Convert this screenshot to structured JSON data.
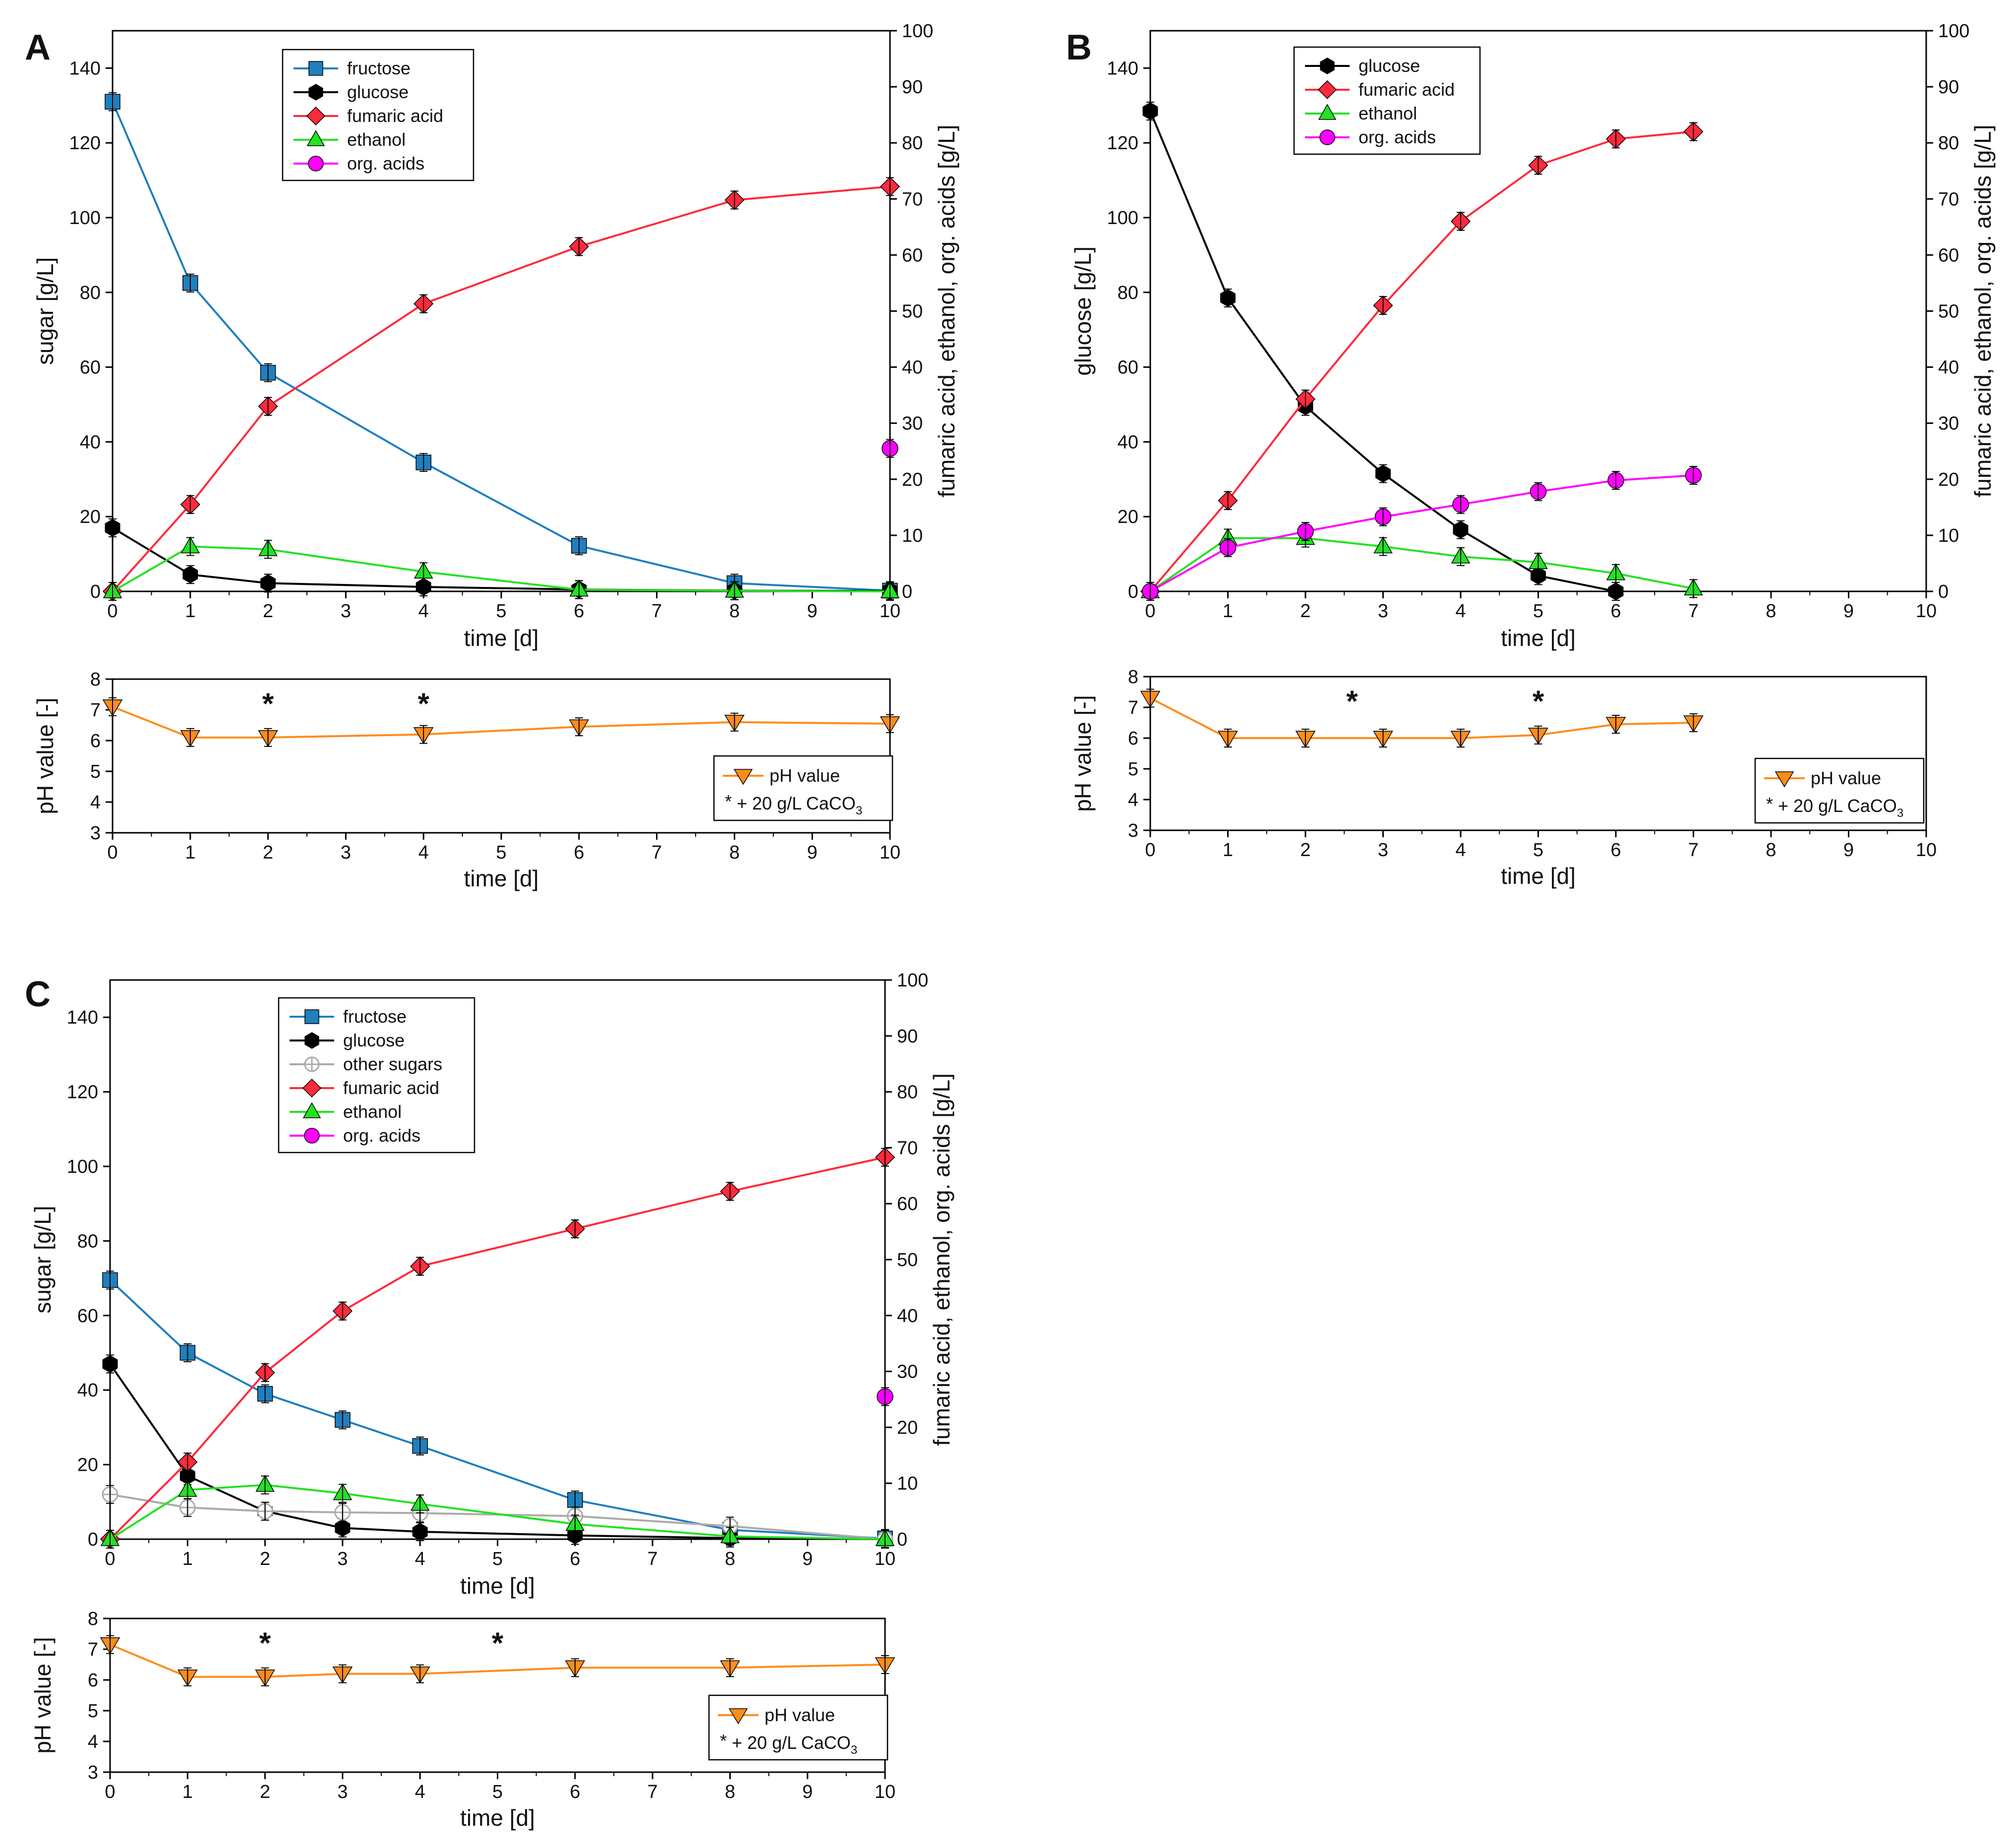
{
  "chart_data": [
    {
      "panel": "A",
      "type": "line",
      "xlabel": "time [d]",
      "ylabel": "sugar [g/L]",
      "y2label": "fumaric acid, ethanol, org. acids [g/L]",
      "xlim": [
        0,
        10
      ],
      "ylim": [
        0,
        150
      ],
      "y2lim": [
        0,
        100
      ],
      "xticks": [
        "0",
        "1",
        "2",
        "3",
        "4",
        "5",
        "6",
        "7",
        "8",
        "9",
        "10"
      ],
      "yticks": [
        "0",
        "20",
        "40",
        "60",
        "80",
        "100",
        "120",
        "140"
      ],
      "y2ticks": [
        "0",
        "10",
        "20",
        "30",
        "40",
        "50",
        "60",
        "70",
        "80",
        "90",
        "100"
      ],
      "legend_position": "top-left",
      "series": [
        {
          "name": "fructose",
          "axis": "left",
          "color": "#1f7fbf",
          "marker": "square",
          "x": [
            0,
            1,
            2,
            4,
            6,
            8,
            10
          ],
          "values": [
            131,
            82.5,
            58.5,
            34.5,
            12.2,
            2.2,
            0.2
          ]
        },
        {
          "name": "glucose",
          "axis": "left",
          "color": "#000000",
          "marker": "hexagon",
          "x": [
            0,
            1,
            2,
            4,
            6,
            8,
            10
          ],
          "values": [
            17,
            4.5,
            2.2,
            1.2,
            0.5,
            0.2,
            0.1
          ]
        },
        {
          "name": "fumaric acid",
          "axis": "right",
          "color": "#ff2a3c",
          "marker": "diamond",
          "x": [
            0,
            1,
            2,
            4,
            6,
            8,
            10
          ],
          "values": [
            0,
            15.5,
            33,
            51.3,
            61.5,
            69.8,
            72.2
          ]
        },
        {
          "name": "ethanol",
          "axis": "right",
          "color": "#22e222",
          "marker": "triangle-up",
          "x": [
            0,
            1,
            2,
            4,
            6,
            8,
            10
          ],
          "values": [
            0,
            8,
            7.5,
            3.5,
            0.3,
            0.1,
            0
          ]
        },
        {
          "name": "org. acids",
          "axis": "right",
          "color": "#ff00ff",
          "marker": "circle",
          "x": [
            10
          ],
          "values": [
            25.5
          ]
        }
      ],
      "ph": {
        "xlabel": "time [d]",
        "ylabel": "pH value [-]",
        "xlim": [
          0,
          10
        ],
        "ylim": [
          3,
          8
        ],
        "xticks": [
          "0",
          "1",
          "2",
          "3",
          "4",
          "5",
          "6",
          "7",
          "8",
          "9",
          "10"
        ],
        "yticks": [
          "3",
          "4",
          "5",
          "6",
          "7",
          "8"
        ],
        "series_name": "pH value",
        "color": "#ff8c1a",
        "x": [
          0,
          1,
          2,
          4,
          6,
          8,
          10
        ],
        "values": [
          7.1,
          6.1,
          6.1,
          6.2,
          6.45,
          6.6,
          6.55
        ],
        "caco3_days": [
          2,
          4
        ],
        "footnote_star": "*",
        "footnote_main": "+ 20 g/L CaCO",
        "footnote_sub": "3"
      }
    },
    {
      "panel": "B",
      "type": "line",
      "xlabel": "time [d]",
      "ylabel": "glucose [g/L]",
      "y2label": "fumaric acid, ethanol, org. acids [g/L]",
      "xlim": [
        0,
        10
      ],
      "ylim": [
        0,
        150
      ],
      "y2lim": [
        0,
        100
      ],
      "xticks": [
        "0",
        "1",
        "2",
        "3",
        "4",
        "5",
        "6",
        "7",
        "8",
        "9",
        "10"
      ],
      "yticks": [
        "0",
        "20",
        "40",
        "60",
        "80",
        "100",
        "120",
        "140"
      ],
      "y2ticks": [
        "0",
        "10",
        "20",
        "30",
        "40",
        "50",
        "60",
        "70",
        "80",
        "90",
        "100"
      ],
      "legend_position": "top-left",
      "series": [
        {
          "name": "glucose",
          "axis": "left",
          "color": "#000000",
          "marker": "hexagon",
          "x": [
            0,
            1,
            2,
            3,
            4,
            5,
            6
          ],
          "values": [
            128.5,
            78.5,
            49.5,
            31.5,
            16.5,
            4.2,
            0
          ]
        },
        {
          "name": "fumaric acid",
          "axis": "right",
          "color": "#ff2a3c",
          "marker": "diamond",
          "x": [
            0,
            1,
            2,
            3,
            4,
            5,
            6,
            7
          ],
          "values": [
            0,
            16.2,
            34.3,
            51,
            66,
            76,
            80.7,
            82
          ]
        },
        {
          "name": "ethanol",
          "axis": "right",
          "color": "#22e222",
          "marker": "triangle-up",
          "x": [
            0,
            1,
            2,
            3,
            4,
            5,
            6,
            7
          ],
          "values": [
            0,
            9.5,
            9.5,
            8,
            6.2,
            5.2,
            3.2,
            0.5
          ]
        },
        {
          "name": "org. acids",
          "axis": "right",
          "color": "#ff00ff",
          "marker": "circle",
          "x": [
            0,
            1,
            2,
            3,
            4,
            5,
            6,
            7
          ],
          "values": [
            0,
            7.8,
            10.7,
            13.3,
            15.5,
            17.8,
            19.8,
            20.7
          ]
        }
      ],
      "ph": {
        "xlabel": "time [d]",
        "ylabel": "pH value [-]",
        "xlim": [
          0,
          10
        ],
        "ylim": [
          3,
          8
        ],
        "xticks": [
          "0",
          "1",
          "2",
          "3",
          "4",
          "5",
          "6",
          "7",
          "8",
          "9",
          "10"
        ],
        "yticks": [
          "3",
          "4",
          "5",
          "6",
          "7",
          "8"
        ],
        "series_name": "pH value",
        "color": "#ff8c1a",
        "x": [
          0,
          1,
          2,
          3,
          4,
          5,
          6,
          7
        ],
        "values": [
          7.3,
          6,
          6,
          6,
          6,
          6.1,
          6.45,
          6.5
        ],
        "caco3_days": [
          2.6,
          5
        ],
        "footnote_star": "*",
        "footnote_main": "+ 20 g/L CaCO",
        "footnote_sub": "3"
      }
    },
    {
      "panel": "C",
      "type": "line",
      "xlabel": "time [d]",
      "ylabel": "sugar [g/L]",
      "y2label": "fumaric acid, ethanol, org. acids [g/L]",
      "xlim": [
        0,
        10
      ],
      "ylim": [
        0,
        150
      ],
      "y2lim": [
        0,
        100
      ],
      "xticks": [
        "0",
        "1",
        "2",
        "3",
        "4",
        "5",
        "6",
        "7",
        "8",
        "9",
        "10"
      ],
      "yticks": [
        "0",
        "20",
        "40",
        "60",
        "80",
        "100",
        "120",
        "140"
      ],
      "y2ticks": [
        "0",
        "10",
        "20",
        "30",
        "40",
        "50",
        "60",
        "70",
        "80",
        "90",
        "100"
      ],
      "legend_position": "top-left",
      "series": [
        {
          "name": "fructose",
          "axis": "left",
          "color": "#1f7fbf",
          "marker": "square",
          "x": [
            0,
            1,
            2,
            3,
            4,
            6,
            8,
            10
          ],
          "values": [
            69.5,
            50,
            39,
            32,
            25,
            10.5,
            2.5,
            0.2
          ]
        },
        {
          "name": "glucose",
          "axis": "left",
          "color": "#000000",
          "marker": "hexagon",
          "x": [
            0,
            1,
            2,
            3,
            4,
            6,
            8,
            10
          ],
          "values": [
            47,
            17,
            7.5,
            3,
            2,
            1,
            0.3,
            0
          ]
        },
        {
          "name": "other sugars",
          "axis": "left",
          "color": "#aaaaaa",
          "marker": "crossed-circle",
          "x": [
            0,
            1,
            2,
            3,
            4,
            6,
            8,
            10
          ],
          "values": [
            12,
            8.5,
            7.5,
            7.2,
            7,
            6.2,
            3.5,
            0
          ]
        },
        {
          "name": "fumaric acid",
          "axis": "right",
          "color": "#ff2a3c",
          "marker": "diamond",
          "x": [
            0,
            1,
            2,
            3,
            4,
            6,
            8,
            10
          ],
          "values": [
            0,
            13.8,
            29.8,
            40.8,
            48.8,
            55.5,
            62.2,
            68.3
          ]
        },
        {
          "name": "ethanol",
          "axis": "right",
          "color": "#22e222",
          "marker": "triangle-up",
          "x": [
            0,
            1,
            2,
            3,
            4,
            6,
            8,
            10
          ],
          "values": [
            0,
            8.8,
            9.7,
            8.2,
            6.3,
            2.7,
            0.5,
            0
          ]
        },
        {
          "name": "org. acids",
          "axis": "right",
          "color": "#ff00ff",
          "marker": "circle",
          "x": [
            10
          ],
          "values": [
            25.5
          ]
        }
      ],
      "ph": {
        "xlabel": "time [d]",
        "ylabel": "pH value [-]",
        "xlim": [
          0,
          10
        ],
        "ylim": [
          3,
          8
        ],
        "xticks": [
          "0",
          "1",
          "2",
          "3",
          "4",
          "5",
          "6",
          "7",
          "8",
          "9",
          "10"
        ],
        "yticks": [
          "3",
          "4",
          "5",
          "6",
          "7",
          "8"
        ],
        "series_name": "pH value",
        "color": "#ff8c1a",
        "x": [
          0,
          1,
          2,
          3,
          4,
          6,
          8,
          10
        ],
        "values": [
          7.15,
          6.1,
          6.1,
          6.2,
          6.2,
          6.4,
          6.4,
          6.5
        ],
        "caco3_days": [
          2,
          5
        ],
        "footnote_star": "*",
        "footnote_main": "+ 20 g/L CaCO",
        "footnote_sub": "3"
      }
    }
  ]
}
